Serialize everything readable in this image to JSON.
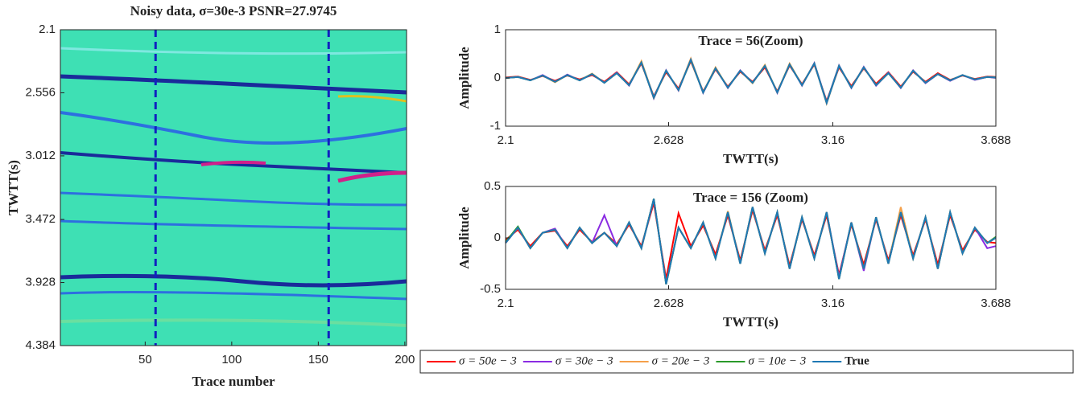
{
  "chart_data": [
    {
      "type": "image",
      "title": "Noisy data, σ=30e-3 PSNR=27.9745",
      "xlabel": "Trace number",
      "ylabel": "TWTT(s)",
      "xlim": [
        1,
        201
      ],
      "xticks": [
        50,
        100,
        150,
        200
      ],
      "ylim": [
        4.384,
        2.1
      ],
      "yticks": [
        2.1,
        2.556,
        3.012,
        3.472,
        3.928,
        4.384
      ],
      "vlines": [
        56,
        156
      ],
      "vline_color": "#1020c0"
    },
    {
      "type": "line",
      "title": "Trace = 56(Zoom)",
      "xlabel": "TWTT(s)",
      "ylabel": "Amplitude",
      "xlim": [
        2.1,
        3.688
      ],
      "xticks": [
        2.1,
        2.628,
        3.16,
        3.688
      ],
      "ylim": [
        -1,
        1
      ],
      "yticks": [
        -1,
        0,
        1
      ],
      "legend": "below",
      "x": [
        2.1,
        2.14,
        2.18,
        2.22,
        2.26,
        2.3,
        2.34,
        2.38,
        2.42,
        2.46,
        2.5,
        2.54,
        2.58,
        2.62,
        2.66,
        2.7,
        2.74,
        2.78,
        2.82,
        2.86,
        2.9,
        2.94,
        2.98,
        3.02,
        3.06,
        3.1,
        3.14,
        3.18,
        3.22,
        3.26,
        3.3,
        3.34,
        3.38,
        3.42,
        3.46,
        3.5,
        3.54,
        3.58,
        3.62,
        3.66,
        3.688
      ],
      "series": [
        {
          "name": "σ = 50e − 3",
          "color": "#ff0000",
          "values": [
            0.01,
            0.03,
            -0.04,
            0.04,
            -0.06,
            0.05,
            -0.03,
            0.06,
            -0.08,
            0.12,
            -0.13,
            0.3,
            -0.38,
            0.12,
            -0.22,
            0.35,
            -0.28,
            0.18,
            -0.18,
            0.13,
            -0.08,
            0.22,
            -0.28,
            0.26,
            -0.13,
            0.28,
            -0.48,
            0.22,
            -0.17,
            0.2,
            -0.12,
            0.12,
            -0.18,
            0.13,
            -0.08,
            0.1,
            -0.04,
            0.05,
            -0.02,
            0.03,
            0.02
          ]
        },
        {
          "name": "σ = 30e − 3",
          "color": "#8a2be2",
          "values": [
            0,
            0.02,
            -0.05,
            0.06,
            -0.08,
            0.07,
            -0.05,
            0.08,
            -0.1,
            0.11,
            -0.16,
            0.33,
            -0.42,
            0.16,
            -0.26,
            0.39,
            -0.31,
            0.21,
            -0.21,
            0.16,
            -0.1,
            0.26,
            -0.31,
            0.29,
            -0.16,
            0.31,
            -0.5,
            0.26,
            -0.21,
            0.23,
            -0.16,
            0.11,
            -0.21,
            0.16,
            -0.11,
            0.08,
            -0.06,
            0.06,
            -0.04,
            0.02,
            0
          ]
        },
        {
          "name": "σ = 20e − 3",
          "color": "#f5a04a",
          "values": [
            0,
            0.02,
            -0.05,
            0.05,
            -0.09,
            0.06,
            -0.05,
            0.09,
            -0.1,
            0.1,
            -0.15,
            0.35,
            -0.4,
            0.15,
            -0.25,
            0.4,
            -0.3,
            0.22,
            -0.2,
            0.15,
            -0.11,
            0.27,
            -0.3,
            0.3,
            -0.15,
            0.3,
            -0.53,
            0.25,
            -0.2,
            0.22,
            -0.15,
            0.1,
            -0.2,
            0.15,
            -0.1,
            0.08,
            -0.05,
            0.06,
            -0.03,
            0.02,
            0.01
          ]
        },
        {
          "name": "σ = 10e − 3",
          "color": "#2a9a2a",
          "values": [
            0,
            0.02,
            -0.05,
            0.05,
            -0.08,
            0.06,
            -0.05,
            0.08,
            -0.1,
            0.1,
            -0.15,
            0.32,
            -0.41,
            0.15,
            -0.25,
            0.37,
            -0.3,
            0.2,
            -0.2,
            0.15,
            -0.1,
            0.25,
            -0.3,
            0.28,
            -0.15,
            0.3,
            -0.51,
            0.25,
            -0.2,
            0.22,
            -0.15,
            0.1,
            -0.2,
            0.15,
            -0.1,
            0.08,
            -0.05,
            0.06,
            -0.03,
            0.02,
            0.01
          ]
        },
        {
          "name": "True",
          "color": "#1f78b4",
          "values": [
            0,
            0.02,
            -0.05,
            0.05,
            -0.08,
            0.06,
            -0.05,
            0.08,
            -0.1,
            0.1,
            -0.15,
            0.32,
            -0.4,
            0.15,
            -0.25,
            0.38,
            -0.3,
            0.2,
            -0.2,
            0.15,
            -0.1,
            0.25,
            -0.3,
            0.28,
            -0.15,
            0.3,
            -0.52,
            0.25,
            -0.2,
            0.22,
            -0.15,
            0.1,
            -0.2,
            0.15,
            -0.1,
            0.08,
            -0.05,
            0.06,
            -0.03,
            0.02,
            0.01
          ]
        }
      ]
    },
    {
      "type": "line",
      "title": "Trace = 156 (Zoom)",
      "xlabel": "TWTT(s)",
      "ylabel": "Amplitude",
      "xlim": [
        2.1,
        3.688
      ],
      "xticks": [
        2.1,
        2.628,
        3.16,
        3.688
      ],
      "ylim": [
        -0.5,
        0.5
      ],
      "yticks": [
        -0.5,
        0,
        0.5
      ],
      "x": [
        2.1,
        2.14,
        2.18,
        2.22,
        2.26,
        2.3,
        2.34,
        2.38,
        2.42,
        2.46,
        2.5,
        2.54,
        2.58,
        2.62,
        2.66,
        2.7,
        2.74,
        2.78,
        2.82,
        2.86,
        2.9,
        2.94,
        2.98,
        3.02,
        3.06,
        3.1,
        3.14,
        3.18,
        3.22,
        3.26,
        3.3,
        3.34,
        3.38,
        3.42,
        3.46,
        3.5,
        3.54,
        3.58,
        3.62,
        3.66,
        3.688
      ],
      "series": [
        {
          "color": "#ff0000",
          "values": [
            -0.02,
            0.08,
            -0.08,
            0.05,
            0.07,
            -0.08,
            0.08,
            -0.04,
            0.05,
            -0.06,
            0.13,
            -0.08,
            0.34,
            -0.4,
            0.24,
            -0.08,
            0.12,
            -0.16,
            0.22,
            -0.22,
            0.27,
            -0.12,
            0.22,
            -0.27,
            0.18,
            -0.17,
            0.22,
            -0.36,
            0.13,
            -0.26,
            0.18,
            -0.22,
            0.22,
            -0.17,
            0.18,
            -0.26,
            0.22,
            -0.12,
            0.08,
            -0.04,
            -0.05
          ]
        },
        {
          "color": "#8a2be2",
          "values": [
            -0.05,
            0.1,
            -0.1,
            0.05,
            0.09,
            -0.1,
            0.1,
            -0.05,
            0.22,
            -0.08,
            0.15,
            -0.1,
            0.37,
            -0.44,
            0.1,
            -0.1,
            0.15,
            -0.2,
            0.25,
            -0.25,
            0.3,
            -0.15,
            0.25,
            -0.3,
            0.2,
            -0.2,
            0.25,
            -0.38,
            0.15,
            -0.32,
            0.2,
            -0.25,
            0.25,
            -0.2,
            0.2,
            -0.3,
            0.25,
            -0.15,
            0.1,
            -0.1,
            -0.08
          ]
        },
        {
          "color": "#f5a04a",
          "values": [
            -0.05,
            0.1,
            -0.1,
            0.05,
            0.08,
            -0.1,
            0.1,
            -0.05,
            0.05,
            -0.08,
            0.15,
            -0.1,
            0.38,
            -0.45,
            0.1,
            -0.1,
            0.15,
            -0.2,
            0.26,
            -0.25,
            0.3,
            -0.15,
            0.25,
            -0.3,
            0.2,
            -0.2,
            0.25,
            -0.4,
            0.15,
            -0.3,
            0.2,
            -0.25,
            0.3,
            -0.2,
            0.2,
            -0.3,
            0.25,
            -0.15,
            0.1,
            -0.05,
            0
          ]
        },
        {
          "color": "#2a9a2a",
          "values": [
            -0.04,
            0.11,
            -0.1,
            0.05,
            0.08,
            -0.1,
            0.1,
            -0.05,
            0.05,
            -0.08,
            0.15,
            -0.1,
            0.38,
            -0.45,
            0.1,
            -0.1,
            0.15,
            -0.2,
            0.25,
            -0.25,
            0.3,
            -0.15,
            0.25,
            -0.3,
            0.2,
            -0.2,
            0.25,
            -0.4,
            0.15,
            -0.3,
            0.2,
            -0.25,
            0.25,
            -0.2,
            0.2,
            -0.3,
            0.25,
            -0.15,
            0.1,
            -0.05,
            0.01
          ]
        },
        {
          "color": "#1f78b4",
          "values": [
            -0.05,
            0.1,
            -0.1,
            0.05,
            0.08,
            -0.1,
            0.1,
            -0.05,
            0.05,
            -0.08,
            0.15,
            -0.1,
            0.38,
            -0.45,
            0.1,
            -0.1,
            0.15,
            -0.2,
            0.25,
            -0.25,
            0.3,
            -0.15,
            0.25,
            -0.3,
            0.2,
            -0.2,
            0.25,
            -0.4,
            0.15,
            -0.3,
            0.2,
            -0.25,
            0.25,
            -0.2,
            0.2,
            -0.3,
            0.25,
            -0.15,
            0.1,
            -0.05,
            0
          ]
        }
      ]
    }
  ]
}
